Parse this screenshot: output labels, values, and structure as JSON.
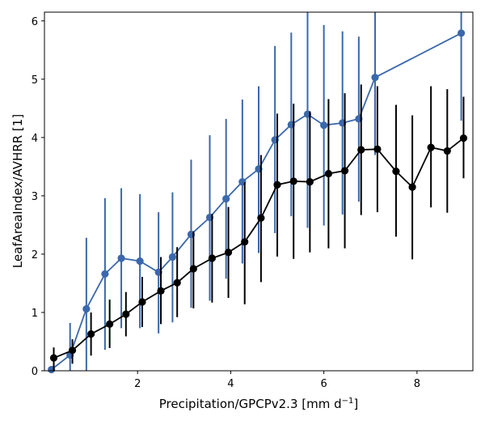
{
  "chart_data": {
    "type": "line",
    "title": "",
    "xlabel": "Precipitation/GPCPv2.3 [mm d",
    "xlabel_sup": "−1",
    "xlabel_end": "]",
    "ylabel": "LeafAreaIndex/AVHRR [1]",
    "xlim": [
      0.0,
      9.2
    ],
    "ylim": [
      0,
      6.15
    ],
    "xticks": [
      2,
      4,
      6,
      8
    ],
    "xtick_labels": [
      "2",
      "4",
      "6",
      "8"
    ],
    "yticks": [
      0,
      1,
      2,
      3,
      4,
      5,
      6
    ],
    "ytick_labels": [
      "0",
      "1",
      "2",
      "3",
      "4",
      "5",
      "6"
    ],
    "grid": false,
    "legend": null,
    "series": [
      {
        "name": "blue",
        "color": "#3b68ac",
        "x": [
          0.15,
          0.55,
          0.9,
          1.3,
          1.65,
          2.05,
          2.45,
          2.75,
          3.15,
          3.55,
          3.9,
          4.25,
          4.6,
          4.95,
          5.3,
          5.65,
          6.0,
          6.4,
          6.75,
          7.1,
          8.95
        ],
        "y": [
          0.02,
          0.27,
          1.06,
          1.66,
          1.93,
          1.88,
          1.69,
          1.95,
          2.34,
          2.63,
          2.95,
          3.24,
          3.46,
          3.96,
          4.22,
          4.4,
          4.21,
          4.25,
          4.32,
          5.03,
          5.79
        ],
        "err_low": [
          0.02,
          0.27,
          1.06,
          1.3,
          1.2,
          1.15,
          1.05,
          1.12,
          1.26,
          1.43,
          1.37,
          1.4,
          1.44,
          1.6,
          1.57,
          1.95,
          1.72,
          1.57,
          1.42,
          1.33,
          1.5
        ],
        "err_high": [
          0.02,
          0.55,
          1.22,
          1.3,
          1.2,
          1.15,
          1.03,
          1.11,
          1.28,
          1.41,
          1.37,
          1.41,
          1.42,
          1.61,
          1.58,
          1.78,
          1.72,
          1.57,
          1.41,
          1.12,
          0.36
        ]
      },
      {
        "name": "black",
        "color": "#000000",
        "x": [
          0.2,
          0.6,
          1.0,
          1.4,
          1.75,
          2.1,
          2.5,
          2.85,
          3.2,
          3.6,
          3.95,
          4.3,
          4.65,
          5.0,
          5.35,
          5.7,
          6.1,
          6.45,
          6.8,
          7.15,
          7.55,
          7.9,
          8.3,
          8.65,
          9.0
        ],
        "y": [
          0.22,
          0.35,
          0.63,
          0.8,
          0.97,
          1.18,
          1.37,
          1.51,
          1.75,
          1.93,
          2.03,
          2.21,
          2.62,
          3.19,
          3.25,
          3.24,
          3.38,
          3.43,
          3.79,
          3.8,
          3.42,
          3.15,
          3.83,
          3.77,
          3.99
        ],
        "err_low": [
          0.22,
          0.23,
          0.37,
          0.41,
          0.38,
          0.43,
          0.57,
          0.59,
          0.68,
          0.76,
          0.78,
          1.07,
          1.1,
          1.23,
          1.33,
          1.21,
          1.28,
          1.33,
          1.12,
          1.08,
          1.12,
          1.24,
          1.03,
          1.06,
          0.69
        ],
        "err_high": [
          0.18,
          0.19,
          0.37,
          0.42,
          0.38,
          0.43,
          0.58,
          0.61,
          0.64,
          0.76,
          0.78,
          1.02,
          1.08,
          1.22,
          1.33,
          1.21,
          1.28,
          1.33,
          1.12,
          1.08,
          1.14,
          1.23,
          1.05,
          1.06,
          0.71
        ]
      }
    ]
  }
}
